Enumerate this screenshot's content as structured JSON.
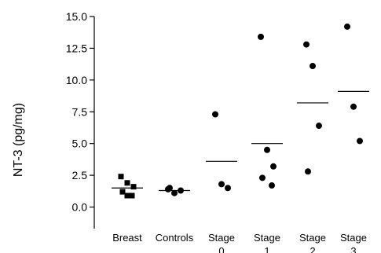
{
  "chart_data": {
    "type": "scatter",
    "title": "",
    "xlabel": "",
    "ylabel": "NT-3 (pg/mg)",
    "ylim": [
      -1.7,
      15.0
    ],
    "yticks": [
      "15.0",
      "12.5",
      "10.0",
      "7.5",
      "5.0",
      "2.5",
      "0.0"
    ],
    "ytick_values": [
      15.0,
      12.5,
      10.0,
      7.5,
      5.0,
      2.5,
      0.0
    ],
    "categories": [
      {
        "label": "Breast",
        "sublabel": "",
        "marker": "square",
        "values": [
          2.4,
          1.9,
          1.6,
          1.2,
          0.9,
          0.9
        ],
        "mean": 1.5
      },
      {
        "label": "Controls",
        "sublabel": "",
        "marker": "circle",
        "values": [
          1.4,
          1.1,
          1.3,
          1.5
        ],
        "mean": 1.3
      },
      {
        "label": "Stage",
        "sublabel": "0",
        "marker": "circle",
        "values": [
          7.3,
          1.8,
          1.5
        ],
        "mean": 3.6
      },
      {
        "label": "Stage",
        "sublabel": "1",
        "marker": "circle",
        "values": [
          13.4,
          4.5,
          3.2,
          2.3,
          1.7
        ],
        "mean": 5.0
      },
      {
        "label": "Stage",
        "sublabel": "2",
        "marker": "circle",
        "values": [
          12.8,
          11.1,
          6.4,
          2.8
        ],
        "mean": 8.2
      },
      {
        "label": "Stage",
        "sublabel": "3",
        "marker": "circle",
        "values": [
          14.2,
          7.9,
          5.2
        ],
        "mean": 9.1
      }
    ],
    "grid": false
  }
}
